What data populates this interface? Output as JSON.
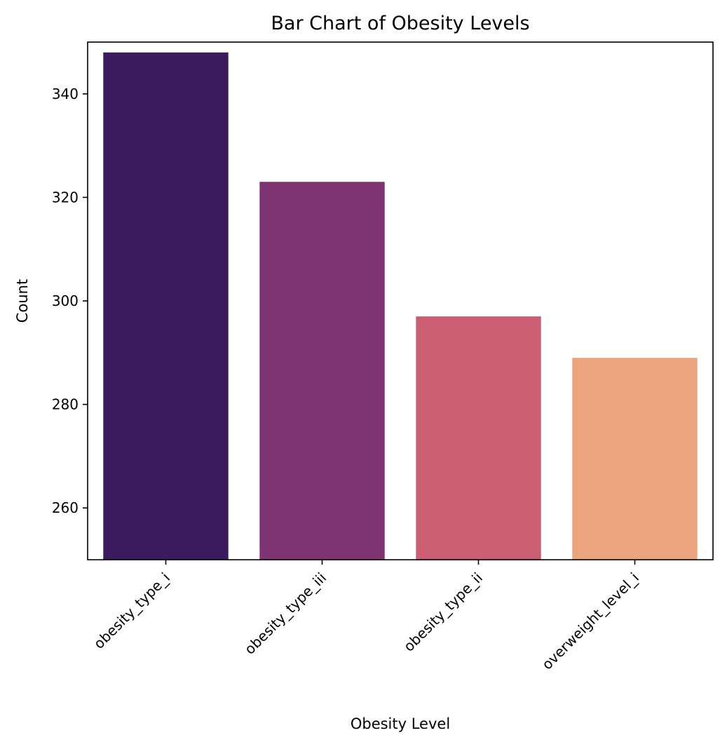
{
  "chart_data": {
    "type": "bar",
    "title": "Bar Chart of Obesity Levels",
    "xlabel": "Obesity Level",
    "ylabel": "Count",
    "categories": [
      "obesity_type_i",
      "obesity_type_iii",
      "obesity_type_ii",
      "overweight_level_i"
    ],
    "values": [
      348,
      323,
      297,
      289
    ],
    "colors": [
      "#3b1a5e",
      "#7e3473",
      "#cb5e73",
      "#eba57e"
    ],
    "ylim": [
      250,
      350
    ],
    "yticks": [
      260,
      280,
      300,
      320,
      340
    ],
    "grid": false,
    "legend": "none"
  }
}
